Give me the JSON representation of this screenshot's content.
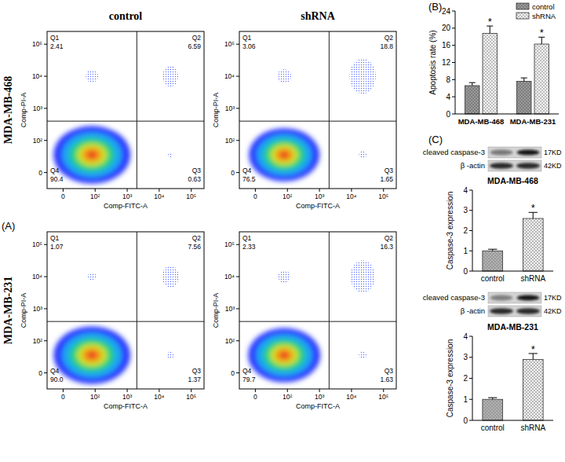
{
  "figure": {
    "panel_labels": [
      "(A)",
      "(B)",
      "(C)"
    ],
    "column_titles": [
      "control",
      "shRNA"
    ],
    "row_titles": [
      "MDA-MB-468",
      "MDA-MB-231"
    ],
    "blots": [
      {
        "target": "cleaved caspase-3",
        "target_size": "17KD",
        "loading": "β -actin",
        "loading_size": "42KD"
      },
      {
        "target": "cleaved caspase-3",
        "target_size": "17KD",
        "loading": "β -actin",
        "loading_size": "42KD"
      }
    ]
  },
  "chart_data": [
    {
      "type": "quadrant",
      "xlabel": "Comp-FITC-A",
      "ylabel": "Comp-PI-A",
      "log": true,
      "xlim": [
        -50,
        250000
      ],
      "ylim": [
        -50,
        250000
      ],
      "xticks": [
        0,
        {
          "value": 100,
          "label": "10²"
        },
        {
          "value": 1000,
          "label": "10³"
        },
        {
          "value": 10000,
          "label": "10⁴"
        },
        {
          "value": 100000,
          "label": "10⁵"
        }
      ],
      "yticks": [
        0,
        {
          "value": 100,
          "label": "10²"
        },
        {
          "value": 1000,
          "label": "10³"
        },
        {
          "value": 10000,
          "label": "10⁴"
        },
        {
          "value": 100000,
          "label": "10⁵"
        }
      ],
      "gate_x": 2000,
      "gate_y": 400,
      "quadrants": [
        {
          "name": "Q1",
          "value": 2.41
        },
        {
          "name": "Q2",
          "value": 6.59
        },
        {
          "name": "Q3",
          "value": 0.63
        },
        {
          "name": "Q4",
          "value": 90.4
        }
      ]
    },
    {
      "type": "quadrant",
      "xlabel": "Comp-FITC-A",
      "ylabel": "Comp-PI-A",
      "log": true,
      "xlim": [
        -50,
        250000
      ],
      "ylim": [
        -50,
        250000
      ],
      "xticks": [
        0,
        {
          "value": 100,
          "label": "10²"
        },
        {
          "value": 1000,
          "label": "10³"
        },
        {
          "value": 10000,
          "label": "10⁴"
        },
        {
          "value": 100000,
          "label": "10⁵"
        }
      ],
      "yticks": [
        0,
        {
          "value": 100,
          "label": "10²"
        },
        {
          "value": 1000,
          "label": "10³"
        },
        {
          "value": 10000,
          "label": "10⁴"
        },
        {
          "value": 100000,
          "label": "10⁵"
        }
      ],
      "gate_x": 2000,
      "gate_y": 400,
      "quadrants": [
        {
          "name": "Q1",
          "value": 3.06
        },
        {
          "name": "Q2",
          "value": 18.8
        },
        {
          "name": "Q3",
          "value": 1.65
        },
        {
          "name": "Q4",
          "value": 76.5
        }
      ]
    },
    {
      "type": "quadrant",
      "xlabel": "Comp-FITC-A",
      "ylabel": "Comp-PI-A",
      "log": true,
      "xlim": [
        -50,
        250000
      ],
      "ylim": [
        -50,
        250000
      ],
      "xticks": [
        0,
        {
          "value": 100,
          "label": "10²"
        },
        {
          "value": 1000,
          "label": "10³"
        },
        {
          "value": 10000,
          "label": "10⁴"
        },
        {
          "value": 100000,
          "label": "10⁵"
        }
      ],
      "yticks": [
        0,
        {
          "value": 100,
          "label": "10²"
        },
        {
          "value": 1000,
          "label": "10³"
        },
        {
          "value": 10000,
          "label": "10⁴"
        },
        {
          "value": 100000,
          "label": "10⁵"
        }
      ],
      "gate_x": 2000,
      "gate_y": 400,
      "quadrants": [
        {
          "name": "Q1",
          "value": 1.07
        },
        {
          "name": "Q2",
          "value": 7.56
        },
        {
          "name": "Q3",
          "value": 1.37
        },
        {
          "name": "Q4",
          "value": 90.0,
          "label": "90.0"
        }
      ]
    },
    {
      "type": "quadrant",
      "xlabel": "Comp-FITC-A",
      "ylabel": "Comp-PI-A",
      "log": true,
      "xlim": [
        -50,
        250000
      ],
      "ylim": [
        -50,
        250000
      ],
      "xticks": [
        0,
        {
          "value": 100,
          "label": "10²"
        },
        {
          "value": 1000,
          "label": "10³"
        },
        {
          "value": 10000,
          "label": "10⁴"
        },
        {
          "value": 100000,
          "label": "10⁵"
        }
      ],
      "yticks": [
        0,
        {
          "value": 100,
          "label": "10²"
        },
        {
          "value": 1000,
          "label": "10³"
        },
        {
          "value": 10000,
          "label": "10⁴"
        },
        {
          "value": 100000,
          "label": "10⁵"
        }
      ],
      "gate_x": 2000,
      "gate_y": 400,
      "quadrants": [
        {
          "name": "Q1",
          "value": 2.33
        },
        {
          "name": "Q2",
          "value": 16.3
        },
        {
          "name": "Q3",
          "value": 1.63
        },
        {
          "name": "Q4",
          "value": 79.7
        }
      ]
    },
    {
      "type": "bar",
      "ylabel": "Apoptosis rate (%)",
      "categories": [
        "MDA-MB-468",
        "MDA-MB-231"
      ],
      "series": [
        {
          "name": "control",
          "color": "#7d7d7d",
          "values": [
            6.6,
            7.6
          ],
          "errors": [
            0.7,
            0.8
          ]
        },
        {
          "name": "shRNA",
          "color": "#bcbcbc",
          "values": [
            18.8,
            16.3
          ],
          "errors": [
            1.7,
            1.6
          ]
        }
      ],
      "ylim": [
        0,
        24
      ],
      "yticks": [
        0,
        4,
        8,
        12,
        16,
        20,
        24
      ],
      "legend": "top-right",
      "annotations": [
        {
          "text": "*",
          "category": 0,
          "series": 1
        },
        {
          "text": "*",
          "category": 1,
          "series": 1
        }
      ]
    },
    {
      "type": "bar",
      "title": "MDA-MB-468",
      "ylabel": "Caspase-3 expression",
      "categories": [
        "control",
        "shRNA"
      ],
      "values": [
        1.0,
        2.6
      ],
      "errors": [
        0.08,
        0.3
      ],
      "colors": [
        "#9a9a9a",
        "#b5b5b5"
      ],
      "ylim": [
        0,
        4
      ],
      "yticks": [
        0,
        1,
        2,
        3,
        4
      ],
      "annotations": [
        {
          "text": "*",
          "category": 1
        }
      ]
    },
    {
      "type": "bar",
      "title": "MDA-MB-231",
      "ylabel": "Caspase-3 expression",
      "categories": [
        "control",
        "shRNA"
      ],
      "values": [
        1.0,
        2.9
      ],
      "errors": [
        0.08,
        0.28
      ],
      "colors": [
        "#9a9a9a",
        "#b5b5b5"
      ],
      "ylim": [
        0,
        4
      ],
      "yticks": [
        0,
        1,
        2,
        3,
        4
      ],
      "annotations": [
        {
          "text": "*",
          "category": 1
        }
      ]
    }
  ]
}
